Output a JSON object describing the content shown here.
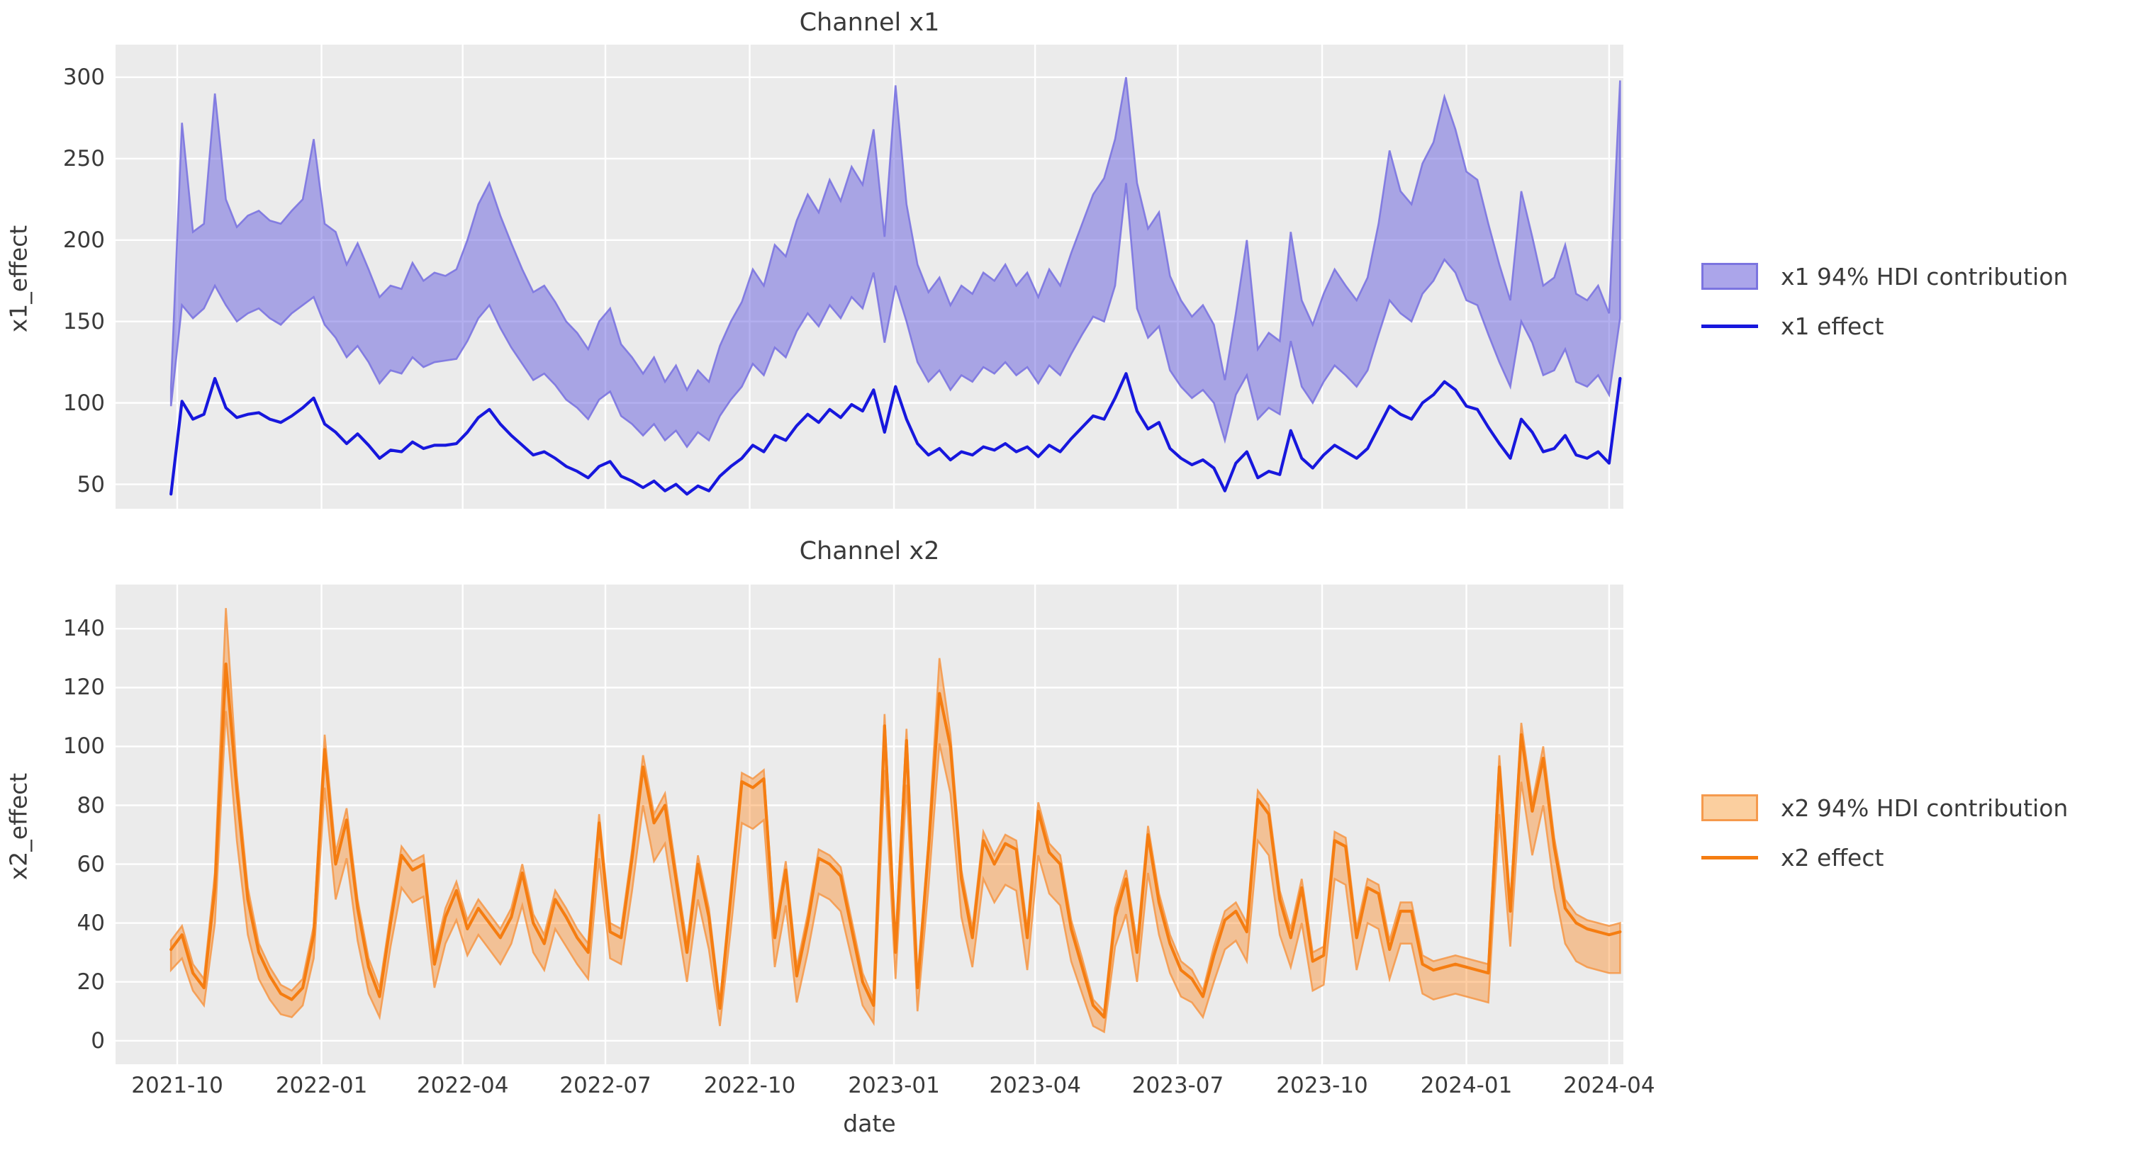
{
  "figure": {
    "background": "#ffffff",
    "plot_background": "#ebebeb",
    "grid_color": "#ffffff",
    "text_color": "#3a3a3a"
  },
  "xlabel": "date",
  "x_tick_labels": [
    "2021-10",
    "2022-01",
    "2022-04",
    "2022-07",
    "2022-10",
    "2023-01",
    "2023-04",
    "2023-07",
    "2023-10",
    "2024-01",
    "2024-04"
  ],
  "chart_data": [
    {
      "type": "line",
      "title": "Channel x1",
      "ylabel": "x1_effect",
      "xlabel": "date",
      "legend_position": "right-outside",
      "grid": true,
      "x_start": "2021-09-27",
      "x_freq_days": 7,
      "n_points": 133,
      "x_tick_labels": [
        "2021-10",
        "2022-01",
        "2022-04",
        "2022-07",
        "2022-10",
        "2023-01",
        "2023-04",
        "2023-07",
        "2023-10",
        "2024-01",
        "2024-04"
      ],
      "x_tick_index": [
        0.571,
        13.714,
        26.571,
        39.571,
        52.714,
        65.857,
        78.714,
        91.714,
        104.857,
        118.0,
        131.0
      ],
      "xlim_index": [
        -5.05,
        132.3
      ],
      "ylim": [
        35,
        320
      ],
      "y_ticks": [
        50,
        100,
        150,
        200,
        250,
        300
      ],
      "legend": [
        {
          "label": "x1 94% HDI contribution",
          "type": "patch"
        },
        {
          "label": "x1 effect",
          "type": "line"
        }
      ],
      "colors": {
        "band_fill": "#5a50dd",
        "band_fill_opacity": 0.46,
        "band_edge": "#7b74e0",
        "line": "#1717dd",
        "legend_patch_bg": "#aba5ea"
      },
      "series": [
        {
          "name": "x1 effect",
          "role": "line",
          "values": [
            44,
            101,
            90,
            93,
            115,
            97,
            91,
            93,
            94,
            90,
            88,
            92,
            97,
            103,
            87,
            82,
            75,
            81,
            74,
            66,
            71,
            70,
            76,
            72,
            74,
            74,
            75,
            82,
            91,
            96,
            87,
            80,
            74,
            68,
            70,
            66,
            61,
            58,
            54,
            61,
            64,
            55,
            52,
            48,
            52,
            46,
            50,
            44,
            49,
            46,
            55,
            61,
            66,
            74,
            70,
            80,
            77,
            86,
            93,
            88,
            96,
            91,
            99,
            95,
            108,
            82,
            110,
            90,
            75,
            68,
            72,
            65,
            70,
            68,
            73,
            71,
            75,
            70,
            73,
            67,
            74,
            70,
            78,
            85,
            92,
            90,
            103,
            118,
            95,
            84,
            88,
            72,
            66,
            62,
            65,
            60,
            46,
            63,
            70,
            54,
            58,
            56,
            83,
            66,
            60,
            68,
            74,
            70,
            66,
            72,
            85,
            98,
            93,
            90,
            100,
            105,
            113,
            108,
            98,
            96,
            85,
            75,
            66,
            90,
            82,
            70,
            72,
            80,
            68,
            66,
            70,
            63,
            115
          ]
        },
        {
          "name": "x1 94% HDI lower",
          "role": "band_lower",
          "values": [
            98,
            160,
            152,
            158,
            172,
            160,
            150,
            155,
            158,
            152,
            148,
            155,
            160,
            165,
            148,
            140,
            128,
            135,
            125,
            112,
            120,
            118,
            128,
            122,
            125,
            126,
            127,
            138,
            152,
            160,
            146,
            134,
            124,
            114,
            118,
            111,
            102,
            97,
            90,
            102,
            107,
            92,
            87,
            80,
            87,
            77,
            83,
            73,
            82,
            77,
            92,
            102,
            110,
            124,
            117,
            134,
            128,
            144,
            155,
            147,
            160,
            152,
            165,
            158,
            180,
            137,
            172,
            150,
            125,
            113,
            120,
            108,
            117,
            113,
            122,
            118,
            125,
            117,
            122,
            112,
            123,
            117,
            130,
            142,
            153,
            150,
            172,
            235,
            158,
            140,
            147,
            120,
            110,
            103,
            108,
            100,
            77,
            105,
            117,
            90,
            97,
            93,
            138,
            110,
            100,
            113,
            123,
            117,
            110,
            120,
            142,
            163,
            155,
            150,
            167,
            175,
            188,
            180,
            163,
            160,
            142,
            125,
            110,
            150,
            137,
            117,
            120,
            133,
            113,
            110,
            117,
            105,
            152
          ]
        },
        {
          "name": "x1 94% HDI upper",
          "role": "band_upper",
          "values": [
            110,
            272,
            205,
            210,
            290,
            225,
            208,
            215,
            218,
            212,
            210,
            218,
            225,
            262,
            210,
            205,
            185,
            198,
            182,
            165,
            172,
            170,
            186,
            175,
            180,
            178,
            182,
            200,
            222,
            235,
            215,
            198,
            182,
            168,
            172,
            162,
            150,
            143,
            133,
            150,
            158,
            136,
            128,
            118,
            128,
            113,
            123,
            108,
            120,
            113,
            135,
            150,
            162,
            182,
            172,
            197,
            190,
            212,
            228,
            217,
            237,
            224,
            245,
            234,
            268,
            202,
            295,
            222,
            185,
            168,
            177,
            160,
            172,
            167,
            180,
            175,
            185,
            172,
            180,
            165,
            182,
            172,
            192,
            210,
            228,
            238,
            262,
            300,
            235,
            207,
            217,
            178,
            163,
            153,
            160,
            148,
            114,
            155,
            200,
            133,
            143,
            138,
            205,
            163,
            148,
            167,
            182,
            172,
            163,
            177,
            210,
            255,
            230,
            222,
            247,
            260,
            288,
            268,
            242,
            237,
            210,
            185,
            163,
            230,
            202,
            172,
            177,
            197,
            167,
            163,
            172,
            155,
            298
          ]
        }
      ]
    },
    {
      "type": "line",
      "title": "Channel x2",
      "ylabel": "x2_effect",
      "xlabel": "date",
      "legend_position": "right-outside",
      "grid": true,
      "x_start": "2021-09-27",
      "x_freq_days": 7,
      "n_points": 133,
      "x_tick_labels": [
        "2021-10",
        "2022-01",
        "2022-04",
        "2022-07",
        "2022-10",
        "2023-01",
        "2023-04",
        "2023-07",
        "2023-10",
        "2024-01",
        "2024-04"
      ],
      "x_tick_index": [
        0.571,
        13.714,
        26.571,
        39.571,
        52.714,
        65.857,
        78.714,
        91.714,
        104.857,
        118.0,
        131.0
      ],
      "xlim_index": [
        -5.05,
        132.3
      ],
      "ylim": [
        -8,
        155
      ],
      "y_ticks": [
        0,
        20,
        40,
        60,
        80,
        100,
        120,
        140
      ],
      "legend": [
        {
          "label": "x2 94% HDI contribution",
          "type": "patch"
        },
        {
          "label": "x2 effect",
          "type": "line"
        }
      ],
      "colors": {
        "band_fill": "#ff7f0e",
        "band_fill_opacity": 0.38,
        "band_edge": "#f59a4d",
        "line": "#f57d11",
        "legend_patch_bg": "#fbcf9f"
      },
      "series": [
        {
          "name": "x2 effect",
          "role": "line",
          "values": [
            31,
            36,
            23,
            18,
            52,
            128,
            85,
            48,
            30,
            22,
            16,
            14,
            18,
            36,
            99,
            60,
            75,
            45,
            25,
            15,
            40,
            63,
            58,
            60,
            26,
            42,
            51,
            38,
            45,
            40,
            35,
            42,
            57,
            40,
            33,
            48,
            42,
            35,
            30,
            74,
            37,
            35,
            62,
            93,
            74,
            80,
            55,
            30,
            60,
            42,
            11,
            49,
            88,
            86,
            89,
            35,
            58,
            22,
            40,
            62,
            60,
            56,
            38,
            20,
            12,
            107,
            30,
            102,
            18,
            65,
            118,
            100,
            55,
            35,
            68,
            60,
            67,
            65,
            35,
            78,
            64,
            60,
            38,
            25,
            12,
            8,
            42,
            55,
            30,
            70,
            47,
            33,
            24,
            21,
            15,
            29,
            41,
            44,
            37,
            82,
            77,
            48,
            35,
            52,
            27,
            29,
            68,
            66,
            35,
            52,
            50,
            31,
            44,
            44,
            26,
            24,
            25,
            26,
            25,
            24,
            23,
            93,
            44,
            104,
            78,
            96,
            66,
            45,
            40,
            38,
            37,
            36,
            37
          ]
        },
        {
          "name": "x2 94% HDI lower",
          "role": "band_lower",
          "values": [
            24,
            28,
            17,
            12,
            40,
            112,
            68,
            36,
            21,
            14,
            9,
            8,
            12,
            28,
            86,
            48,
            62,
            34,
            16,
            8,
            32,
            52,
            47,
            49,
            18,
            33,
            41,
            29,
            36,
            31,
            26,
            33,
            46,
            30,
            24,
            38,
            32,
            26,
            21,
            62,
            28,
            26,
            51,
            80,
            61,
            67,
            43,
            20,
            48,
            31,
            5,
            38,
            74,
            72,
            75,
            25,
            46,
            13,
            30,
            50,
            48,
            44,
            28,
            12,
            6,
            92,
            21,
            87,
            10,
            52,
            101,
            84,
            42,
            25,
            55,
            47,
            53,
            51,
            24,
            63,
            50,
            46,
            27,
            16,
            5,
            3,
            32,
            43,
            20,
            57,
            36,
            23,
            15,
            13,
            8,
            20,
            31,
            34,
            27,
            68,
            63,
            36,
            25,
            40,
            17,
            19,
            55,
            53,
            24,
            40,
            38,
            21,
            33,
            33,
            16,
            14,
            15,
            16,
            15,
            14,
            13,
            77,
            32,
            88,
            63,
            80,
            52,
            33,
            27,
            25,
            24,
            23,
            23
          ]
        },
        {
          "name": "x2 94% HDI upper",
          "role": "band_upper",
          "values": [
            34,
            39,
            26,
            21,
            57,
            147,
            90,
            52,
            33,
            25,
            19,
            17,
            21,
            39,
            104,
            64,
            79,
            48,
            28,
            18,
            43,
            66,
            61,
            63,
            29,
            45,
            54,
            41,
            48,
            43,
            38,
            45,
            60,
            43,
            36,
            51,
            45,
            38,
            33,
            77,
            40,
            38,
            65,
            97,
            77,
            84,
            58,
            33,
            63,
            45,
            13,
            52,
            91,
            89,
            92,
            38,
            61,
            25,
            43,
            65,
            63,
            59,
            41,
            23,
            14,
            111,
            33,
            106,
            21,
            68,
            130,
            104,
            58,
            38,
            71,
            63,
            70,
            68,
            38,
            81,
            67,
            63,
            41,
            28,
            14,
            10,
            45,
            58,
            33,
            73,
            50,
            36,
            27,
            24,
            17,
            32,
            44,
            47,
            40,
            85,
            80,
            51,
            38,
            55,
            30,
            32,
            71,
            69,
            38,
            55,
            53,
            34,
            47,
            47,
            29,
            27,
            28,
            29,
            28,
            27,
            26,
            97,
            47,
            108,
            81,
            100,
            69,
            48,
            43,
            41,
            40,
            39,
            40
          ]
        }
      ]
    }
  ]
}
